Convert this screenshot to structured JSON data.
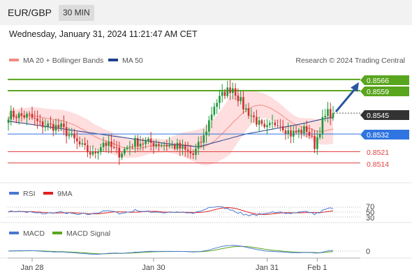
{
  "header": {
    "symbol": "EUR/GBP",
    "interval": "30 MIN"
  },
  "datetime": "Wednesday, January 31, 2024 11:21:47 AM CET",
  "colors": {
    "up": "#1a9a3a",
    "down": "#d03030",
    "green_level": "#5aa51e",
    "blue_level": "#2f74e0",
    "red_level": "#e04040",
    "ma20": "#f28b82",
    "ma50": "#1f3f8f",
    "bands": "#fdd3d3",
    "rsi": "#4a78d0",
    "rsi_ma": "#e02020",
    "macd": "#4a78d0",
    "macd_signal": "#5aa51e",
    "arrow": "#2a55a0",
    "current_badge": "#333333"
  },
  "price_panel": {
    "legend": [
      {
        "name": "MA 20 + Bollinger Bands",
        "color": "#f28b82"
      },
      {
        "name": "MA 50",
        "color": "#1f3f8f"
      }
    ],
    "credit": "Research © 2024 Trading Central",
    "levels": [
      {
        "label": "0.8566",
        "kind": "green",
        "value": 0.8566
      },
      {
        "label": "0.8559",
        "kind": "green",
        "value": 0.8559
      },
      {
        "label": "0.8532",
        "kind": "blue",
        "value": 0.8532
      },
      {
        "label": "0.8521",
        "kind": "red",
        "value": 0.8521
      },
      {
        "label": "0.8514",
        "kind": "red",
        "value": 0.8514
      }
    ],
    "current": {
      "label": "0.8545",
      "value": 0.8545
    }
  },
  "rsi_panel": {
    "legend": [
      {
        "name": "RSI",
        "color": "#4a78d0"
      },
      {
        "name": "9MA",
        "color": "#e02020"
      }
    ],
    "ticks": [
      "70",
      "50",
      "30"
    ]
  },
  "macd_panel": {
    "legend": [
      {
        "name": "MACD",
        "color": "#4a78d0"
      },
      {
        "name": "MACD Signal",
        "color": "#5aa51e"
      }
    ],
    "ticks": [
      "0"
    ]
  },
  "x_axis": {
    "ticks": [
      "Jan 28",
      "Jan 30",
      "Jan 31",
      "Feb 1"
    ]
  },
  "chart_data": {
    "type": "candlestick",
    "instrument": "EUR/GBP",
    "timeframe": "30 MIN",
    "ylim": [
      0.8506,
      0.8572
    ],
    "bar_count": 124,
    "x_tick_positions": [
      {
        "label": "Jan 28",
        "bar": 9
      },
      {
        "label": "Jan 30",
        "bar": 55
      },
      {
        "label": "Jan 31",
        "bar": 98
      },
      {
        "label": "Feb 1",
        "bar": 117
      }
    ],
    "key_points": [
      {
        "bar": 0,
        "close": 0.8544
      },
      {
        "bar": 8,
        "close": 0.8543
      },
      {
        "bar": 12,
        "close": 0.8538
      },
      {
        "bar": 20,
        "close": 0.8536
      },
      {
        "bar": 27,
        "close": 0.8525
      },
      {
        "bar": 32,
        "close": 0.8519
      },
      {
        "bar": 36,
        "close": 0.8527
      },
      {
        "bar": 42,
        "close": 0.852
      },
      {
        "bar": 48,
        "close": 0.8527
      },
      {
        "bar": 58,
        "close": 0.8526
      },
      {
        "bar": 64,
        "close": 0.8524
      },
      {
        "bar": 70,
        "close": 0.8519
      },
      {
        "bar": 74,
        "close": 0.853
      },
      {
        "bar": 78,
        "close": 0.855
      },
      {
        "bar": 82,
        "close": 0.8558
      },
      {
        "bar": 85,
        "close": 0.8561
      },
      {
        "bar": 89,
        "close": 0.8549
      },
      {
        "bar": 93,
        "close": 0.8542
      },
      {
        "bar": 97,
        "close": 0.8534
      },
      {
        "bar": 102,
        "close": 0.854
      },
      {
        "bar": 107,
        "close": 0.8532
      },
      {
        "bar": 113,
        "close": 0.8535
      },
      {
        "bar": 116,
        "close": 0.8525
      },
      {
        "bar": 119,
        "close": 0.854
      },
      {
        "bar": 121,
        "close": 0.8545
      }
    ],
    "bollinger_halfwidth": [
      {
        "bar": 0,
        "value": 0.0004
      },
      {
        "bar": 30,
        "value": 0.0008
      },
      {
        "bar": 60,
        "value": 0.0004
      },
      {
        "bar": 78,
        "value": 0.0014
      },
      {
        "bar": 84,
        "value": 0.0018
      },
      {
        "bar": 95,
        "value": 0.0008
      },
      {
        "bar": 110,
        "value": 0.0005
      },
      {
        "bar": 121,
        "value": 0.0009
      }
    ],
    "ma50_points": [
      {
        "bar": 0,
        "value": 0.854
      },
      {
        "bar": 30,
        "value": 0.8533
      },
      {
        "bar": 60,
        "value": 0.8526
      },
      {
        "bar": 72,
        "value": 0.8524
      },
      {
        "bar": 90,
        "value": 0.8532
      },
      {
        "bar": 110,
        "value": 0.8538
      },
      {
        "bar": 121,
        "value": 0.8542
      }
    ],
    "projection": {
      "from_value": 0.8545,
      "to_value": 0.8563
    }
  }
}
